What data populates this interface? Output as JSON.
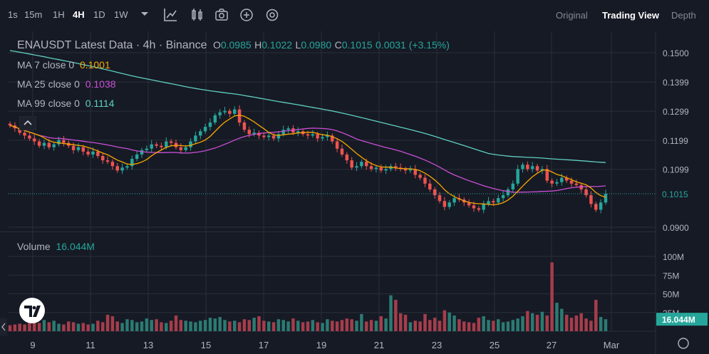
{
  "toolbar": {
    "intervals": [
      "1s",
      "15m",
      "1H",
      "4H",
      "1D",
      "1W"
    ],
    "active_interval": "4H",
    "icons": [
      "chevron-down-icon",
      "indicator-icon",
      "candles-icon",
      "camera-icon",
      "add-circle-icon",
      "settings-icon"
    ],
    "view_tabs": [
      "Original",
      "Trading View",
      "Depth"
    ],
    "active_view": "Trading View"
  },
  "legend": {
    "symbol_line": "ENAUSDT Latest Data · 4h · Binance",
    "o_label": "O",
    "o_value": "0.0985",
    "h_label": "H",
    "h_value": "0.1022",
    "l_label": "L",
    "l_value": "0.0980",
    "c_label": "C",
    "c_value": "0.1015",
    "change": "0.0031 (+3.15%)",
    "ma7_label": "MA 7 close 0",
    "ma7_value": "0.1001",
    "ma25_label": "MA 25 close 0",
    "ma25_value": "0.1038",
    "ma99_label": "MA 99 close 0",
    "ma99_value": "0.1114",
    "volume_label": "Volume",
    "volume_value": "16.044M"
  },
  "colors": {
    "background": "#161a25",
    "grid": "#2a2e39",
    "up": "#26a69a",
    "down": "#ef5350",
    "up_volume": "#2b7b72",
    "down_volume": "#a63d4b",
    "ma7": "#f7a600",
    "ma25": "#c94fd4",
    "ma99": "#5fcfc1",
    "text": "#b2b5be"
  },
  "chart_data": {
    "type": "candlestick",
    "title": "ENAUSDT Latest Data · 4h · Binance",
    "x_ticks": [
      "9",
      "11",
      "13",
      "15",
      "17",
      "19",
      "21",
      "23",
      "25",
      "27",
      "Mar"
    ],
    "price_ticks": [
      "0.1500",
      "0.1399",
      "0.1299",
      "0.1199",
      "0.1099",
      "0.0900"
    ],
    "price_ylim": [
      0.09,
      0.15
    ],
    "last_price": "0.1015",
    "volume_ticks": [
      "100M",
      "75M",
      "50M",
      "25M"
    ],
    "volume_ylim": [
      0,
      100
    ],
    "volume_unit": "M",
    "last_volume": "16.044M",
    "grid": true,
    "ma99_start": 0.151,
    "close": [
      0.125,
      0.124,
      0.1225,
      0.1215,
      0.1205,
      0.1195,
      0.118,
      0.119,
      0.1175,
      0.1185,
      0.12,
      0.119,
      0.118,
      0.1165,
      0.1175,
      0.116,
      0.115,
      0.116,
      0.1145,
      0.113,
      0.1125,
      0.111,
      0.1095,
      0.1105,
      0.111,
      0.1135,
      0.115,
      0.1165,
      0.117,
      0.1185,
      0.118,
      0.1175,
      0.1195,
      0.119,
      0.1175,
      0.1165,
      0.1175,
      0.1195,
      0.1215,
      0.123,
      0.1245,
      0.126,
      0.1285,
      0.1295,
      0.13,
      0.129,
      0.1305,
      0.126,
      0.1235,
      0.122,
      0.1225,
      0.1215,
      0.121,
      0.1215,
      0.1205,
      0.122,
      0.1235,
      0.124,
      0.1225,
      0.123,
      0.122,
      0.1215,
      0.122,
      0.1205,
      0.121,
      0.1215,
      0.1195,
      0.117,
      0.115,
      0.113,
      0.1105,
      0.111,
      0.1125,
      0.111,
      0.11,
      0.1105,
      0.1095,
      0.11,
      0.111,
      0.1105,
      0.11,
      0.1095,
      0.11,
      0.108,
      0.107,
      0.105,
      0.103,
      0.101,
      0.099,
      0.097,
      0.0985,
      0.1,
      0.0995,
      0.0985,
      0.0975,
      0.0965,
      0.096,
      0.098,
      0.099,
      0.0985,
      0.1,
      0.101,
      0.103,
      0.105,
      0.11,
      0.1115,
      0.11,
      0.111,
      0.1095,
      0.11,
      0.106,
      0.105,
      0.1055,
      0.107,
      0.106,
      0.105,
      0.1045,
      0.103,
      0.101,
      0.098,
      0.096,
      0.0985,
      0.1015
    ],
    "volume": [
      8,
      9,
      10,
      9,
      12,
      13,
      11,
      15,
      12,
      14,
      10,
      9,
      13,
      12,
      10,
      11,
      9,
      10,
      14,
      12,
      22,
      20,
      13,
      11,
      16,
      15,
      12,
      13,
      17,
      15,
      16,
      12,
      11,
      14,
      21,
      15,
      14,
      13,
      12,
      14,
      15,
      18,
      17,
      19,
      15,
      13,
      14,
      12,
      16,
      15,
      18,
      20,
      14,
      13,
      12,
      16,
      15,
      13,
      17,
      14,
      12,
      13,
      15,
      12,
      11,
      16,
      14,
      13,
      15,
      17,
      16,
      14,
      23,
      13,
      15,
      14,
      20,
      17,
      48,
      42,
      24,
      22,
      12,
      14,
      13,
      23,
      15,
      18,
      14,
      28,
      25,
      21,
      16,
      13,
      12,
      11,
      18,
      20,
      15,
      14,
      16,
      12,
      13,
      15,
      17,
      20,
      27,
      24,
      22,
      26,
      21,
      92,
      38,
      30,
      22,
      18,
      21,
      24,
      17,
      14,
      42,
      19,
      16
    ]
  }
}
